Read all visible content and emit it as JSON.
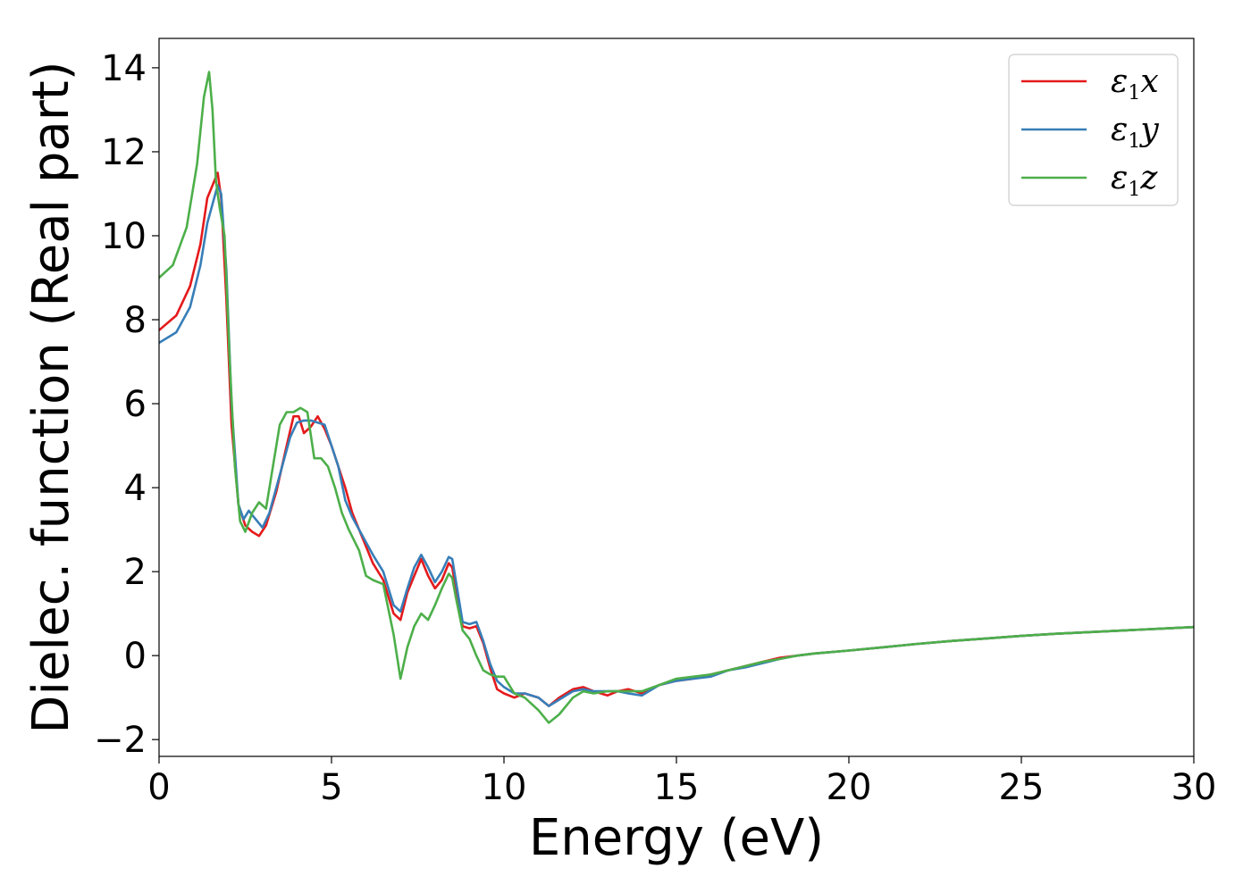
{
  "chart_data": {
    "type": "line",
    "title": "",
    "xlabel": "Energy (eV)",
    "ylabel": "Dielec. function (Real part)",
    "xlim": [
      0,
      30
    ],
    "ylim": [
      -2.4,
      14.7
    ],
    "xticks": [
      0,
      5,
      10,
      15,
      20,
      25,
      30
    ],
    "yticks": [
      -2,
      0,
      2,
      4,
      6,
      8,
      10,
      12,
      14
    ],
    "xtick_labels": [
      "0",
      "5",
      "10",
      "15",
      "20",
      "25",
      "30"
    ],
    "ytick_labels": [
      "−2",
      "0",
      "2",
      "4",
      "6",
      "8",
      "10",
      "12",
      "14"
    ],
    "grid": false,
    "legend_position": "top-right",
    "series": [
      {
        "name": "ε1x",
        "label_main": "ε",
        "label_sub": "1",
        "label_var": "x",
        "color": "#e41a1c",
        "x": [
          0,
          0.5,
          0.9,
          1.2,
          1.4,
          1.55,
          1.7,
          1.8,
          1.95,
          2.1,
          2.3,
          2.5,
          2.7,
          2.9,
          3.1,
          3.4,
          3.7,
          3.9,
          4.05,
          4.2,
          4.4,
          4.6,
          4.8,
          5.0,
          5.2,
          5.4,
          5.6,
          5.8,
          6.0,
          6.2,
          6.5,
          6.8,
          7.0,
          7.2,
          7.4,
          7.6,
          7.8,
          8.0,
          8.2,
          8.4,
          8.5,
          8.6,
          8.8,
          9.0,
          9.2,
          9.4,
          9.6,
          9.8,
          10.0,
          10.3,
          10.6,
          11.0,
          11.3,
          11.6,
          12.0,
          12.3,
          12.6,
          13.0,
          13.3,
          13.6,
          14.0,
          14.5,
          15.0,
          15.5,
          16.0,
          16.5,
          17.0,
          17.5,
          18.0,
          18.5,
          19.0,
          20.0,
          21.0,
          22.0,
          23.0,
          24.0,
          25.0,
          26.0,
          27.0,
          28.0,
          29.0,
          30.0
        ],
        "y": [
          7.75,
          8.1,
          8.8,
          9.8,
          10.9,
          11.2,
          11.5,
          10.9,
          8.5,
          5.5,
          3.6,
          3.1,
          2.95,
          2.85,
          3.1,
          3.9,
          5.0,
          5.7,
          5.7,
          5.3,
          5.45,
          5.7,
          5.4,
          5.0,
          4.5,
          4.0,
          3.4,
          3.0,
          2.6,
          2.2,
          1.8,
          1.0,
          0.85,
          1.5,
          1.9,
          2.3,
          1.9,
          1.6,
          1.8,
          2.2,
          2.1,
          1.6,
          0.7,
          0.65,
          0.7,
          0.3,
          -0.3,
          -0.8,
          -0.9,
          -1.0,
          -0.9,
          -1.0,
          -1.2,
          -1.0,
          -0.8,
          -0.75,
          -0.85,
          -0.95,
          -0.85,
          -0.8,
          -0.9,
          -0.7,
          -0.6,
          -0.55,
          -0.45,
          -0.35,
          -0.25,
          -0.15,
          -0.05,
          0.0,
          0.05,
          0.12,
          0.2,
          0.28,
          0.35,
          0.41,
          0.47,
          0.52,
          0.56,
          0.6,
          0.64,
          0.68
        ]
      },
      {
        "name": "ε1y",
        "label_main": "ε",
        "label_sub": "1",
        "label_var": "y",
        "color": "#377eb8",
        "x": [
          0,
          0.5,
          0.9,
          1.2,
          1.4,
          1.55,
          1.7,
          1.8,
          1.95,
          2.1,
          2.3,
          2.45,
          2.6,
          2.8,
          3.0,
          3.2,
          3.5,
          3.8,
          4.0,
          4.2,
          4.4,
          4.6,
          4.8,
          5.0,
          5.2,
          5.4,
          5.6,
          5.8,
          6.0,
          6.2,
          6.5,
          6.8,
          7.0,
          7.2,
          7.4,
          7.6,
          7.8,
          8.0,
          8.2,
          8.4,
          8.5,
          8.6,
          8.8,
          9.0,
          9.2,
          9.4,
          9.6,
          9.8,
          10.0,
          10.3,
          10.6,
          11.0,
          11.3,
          11.6,
          12.0,
          12.3,
          12.6,
          13.0,
          13.3,
          13.6,
          14.0,
          14.5,
          15.0,
          15.5,
          16.0,
          16.5,
          17.0,
          17.5,
          18.0,
          18.5,
          19.0,
          20.0,
          21.0,
          22.0,
          23.0,
          24.0,
          25.0,
          26.0,
          27.0,
          28.0,
          29.0,
          30.0
        ],
        "y": [
          7.45,
          7.7,
          8.3,
          9.3,
          10.3,
          10.75,
          11.2,
          11.0,
          9.2,
          6.0,
          3.6,
          3.25,
          3.45,
          3.25,
          3.05,
          3.4,
          4.3,
          5.2,
          5.55,
          5.6,
          5.6,
          5.55,
          5.5,
          5.0,
          4.5,
          3.7,
          3.3,
          3.0,
          2.7,
          2.4,
          2.0,
          1.2,
          1.05,
          1.6,
          2.1,
          2.4,
          2.1,
          1.75,
          2.0,
          2.35,
          2.3,
          1.8,
          0.8,
          0.75,
          0.8,
          0.35,
          -0.2,
          -0.6,
          -0.75,
          -0.9,
          -0.9,
          -1.0,
          -1.2,
          -1.05,
          -0.85,
          -0.8,
          -0.85,
          -0.85,
          -0.85,
          -0.9,
          -0.95,
          -0.7,
          -0.6,
          -0.55,
          -0.5,
          -0.35,
          -0.28,
          -0.18,
          -0.08,
          0.0,
          0.05,
          0.12,
          0.2,
          0.28,
          0.35,
          0.41,
          0.47,
          0.52,
          0.56,
          0.6,
          0.64,
          0.68
        ]
      },
      {
        "name": "ε1z",
        "label_main": "ε",
        "label_sub": "1",
        "label_var": "z",
        "color": "#4daf4a",
        "x": [
          0,
          0.4,
          0.8,
          1.1,
          1.3,
          1.45,
          1.55,
          1.65,
          1.75,
          1.9,
          2.05,
          2.2,
          2.35,
          2.5,
          2.7,
          2.9,
          3.1,
          3.3,
          3.5,
          3.7,
          3.9,
          4.1,
          4.3,
          4.5,
          4.7,
          4.9,
          5.1,
          5.3,
          5.5,
          5.8,
          6.0,
          6.2,
          6.5,
          6.8,
          7.0,
          7.2,
          7.4,
          7.6,
          7.8,
          8.0,
          8.2,
          8.4,
          8.5,
          8.6,
          8.8,
          9.0,
          9.2,
          9.4,
          9.6,
          9.8,
          10.0,
          10.3,
          10.6,
          11.0,
          11.3,
          11.6,
          12.0,
          12.3,
          12.6,
          13.0,
          13.3,
          13.6,
          14.0,
          14.5,
          15.0,
          15.5,
          16.0,
          16.5,
          17.0,
          17.5,
          18.0,
          18.5,
          19.0,
          20.0,
          21.0,
          22.0,
          23.0,
          24.0,
          25.0,
          26.0,
          27.0,
          28.0,
          29.0,
          30.0
        ],
        "y": [
          9.0,
          9.3,
          10.2,
          11.7,
          13.3,
          13.9,
          13.0,
          11.3,
          10.7,
          10.0,
          7.0,
          4.5,
          3.2,
          2.95,
          3.4,
          3.65,
          3.5,
          4.5,
          5.5,
          5.8,
          5.8,
          5.9,
          5.8,
          4.7,
          4.7,
          4.5,
          4.0,
          3.4,
          3.0,
          2.5,
          1.9,
          1.8,
          1.7,
          0.5,
          -0.55,
          0.2,
          0.7,
          1.0,
          0.85,
          1.2,
          1.6,
          1.95,
          1.85,
          1.4,
          0.6,
          0.4,
          0.0,
          -0.35,
          -0.45,
          -0.5,
          -0.5,
          -0.9,
          -1.0,
          -1.3,
          -1.6,
          -1.4,
          -1.0,
          -0.85,
          -0.9,
          -0.85,
          -0.85,
          -0.85,
          -0.85,
          -0.7,
          -0.55,
          -0.5,
          -0.45,
          -0.35,
          -0.25,
          -0.15,
          -0.08,
          0.0,
          0.05,
          0.12,
          0.2,
          0.28,
          0.35,
          0.41,
          0.47,
          0.52,
          0.56,
          0.6,
          0.64,
          0.68
        ]
      }
    ]
  }
}
